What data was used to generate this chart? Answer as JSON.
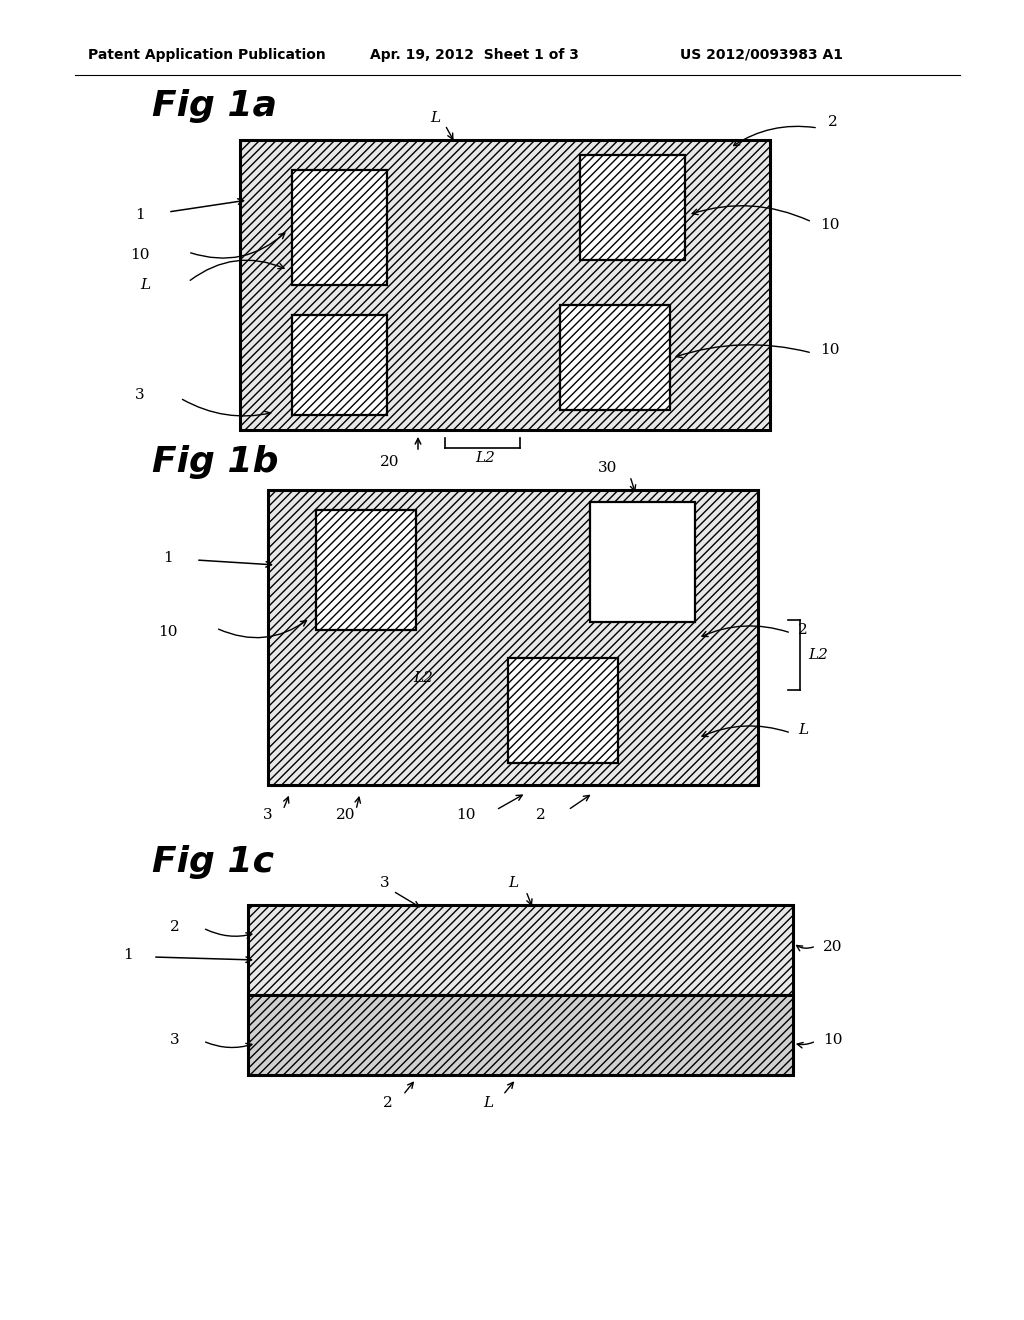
{
  "header_left": "Patent Application Publication",
  "header_center": "Apr. 19, 2012  Sheet 1 of 3",
  "header_right": "US 2012/0093983 A1",
  "fig1a_title": "Fig 1a",
  "fig1b_title": "Fig 1b",
  "fig1c_title": "Fig 1c",
  "bg_color": "#ffffff",
  "hatch_diag": "////",
  "hatch_horiz": "====",
  "light_fill": "#e8e8e8",
  "inner_fill": "#d0d0d0",
  "horiz_fill": "#e0e0e0"
}
